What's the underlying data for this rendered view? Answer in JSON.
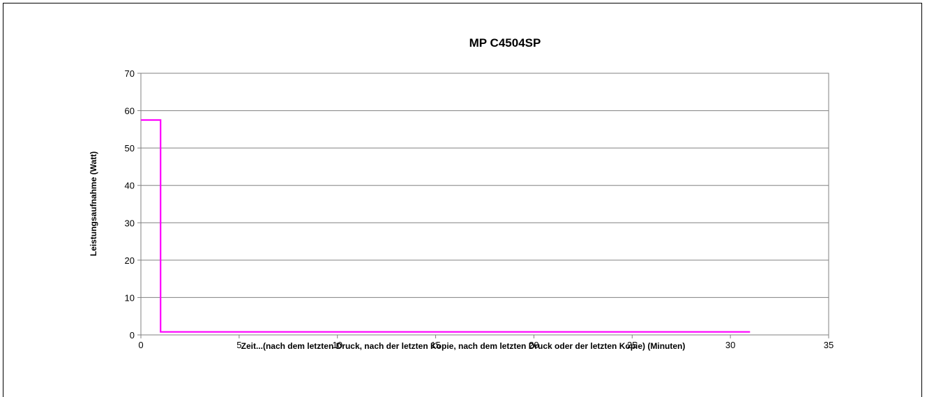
{
  "chart_data": {
    "type": "line",
    "title": "MP C4504SP",
    "xlabel": "Zeit...(nach dem letzten Druck, nach der letzten Kopie, nach dem letzten Druck oder der letzten Kopie) (Minuten)",
    "ylabel": "Leistungsaufnahme (Watt)",
    "xlim": [
      0,
      35
    ],
    "ylim": [
      0,
      70
    ],
    "x_ticks": [
      0,
      5,
      10,
      15,
      20,
      25,
      30,
      35
    ],
    "y_ticks": [
      0,
      10,
      20,
      30,
      40,
      50,
      60,
      70
    ],
    "grid": "horizontal",
    "legend": "none",
    "series": [
      {
        "color": "#ff00ff",
        "step": true,
        "points": [
          [
            0,
            57.5
          ],
          [
            1,
            57.5
          ],
          [
            1,
            0.8
          ],
          [
            31,
            0.8
          ]
        ]
      }
    ]
  }
}
